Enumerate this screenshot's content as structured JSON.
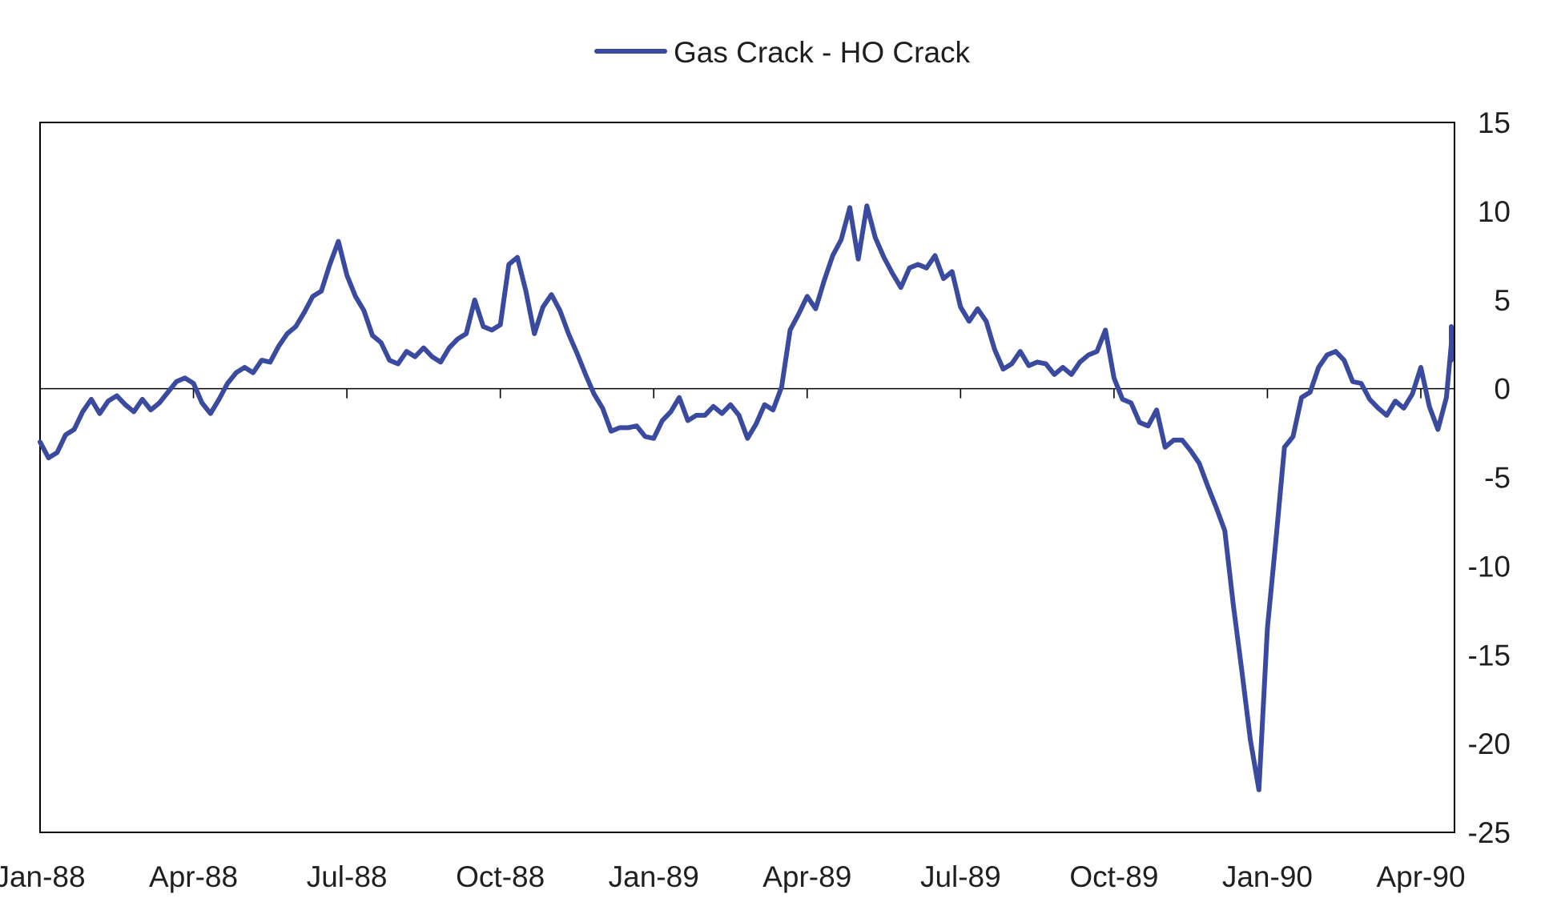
{
  "colors": {
    "series": "#3a4a9f",
    "axis": "#000000",
    "text": "#1f1f1f"
  },
  "legend": {
    "position": "top-center"
  },
  "chart_data": {
    "type": "line",
    "title": "",
    "xlabel": "",
    "ylabel": "",
    "ylim": [
      -25,
      15
    ],
    "yticks": [
      15,
      10,
      5,
      0,
      -5,
      -10,
      -15,
      -20,
      -25
    ],
    "y_axis_side": "right",
    "zero_line": true,
    "grid": false,
    "x_ticks": [
      "Jan-88",
      "Apr-88",
      "Jul-88",
      "Oct-88",
      "Jan-89",
      "Apr-89",
      "Jul-89",
      "Oct-89",
      "Jan-90",
      "Apr-90"
    ],
    "xlim": [
      "Jan-88",
      "May-90"
    ],
    "series": [
      {
        "name": "Gas Crack - HO Crack",
        "points": [
          [
            "Jan-88",
            -3.0
          ],
          [
            "Jan-88",
            -3.9
          ],
          [
            "Jan-88",
            -3.6
          ],
          [
            "Jan-88",
            -2.6
          ],
          [
            "Jan-88",
            -2.3
          ],
          [
            "Jan-88",
            -1.3
          ],
          [
            "Feb-88",
            -0.6
          ],
          [
            "Feb-88",
            -1.4
          ],
          [
            "Feb-88",
            -0.7
          ],
          [
            "Feb-88",
            -0.4
          ],
          [
            "Feb-88",
            -0.9
          ],
          [
            "Feb-88",
            -1.3
          ],
          [
            "Mar-88",
            -0.6
          ],
          [
            "Mar-88",
            -1.2
          ],
          [
            "Mar-88",
            -0.8
          ],
          [
            "Mar-88",
            -0.2
          ],
          [
            "Mar-88",
            0.4
          ],
          [
            "Mar-88",
            0.6
          ],
          [
            "Apr-88",
            0.3
          ],
          [
            "Apr-88",
            -0.8
          ],
          [
            "Apr-88",
            -1.4
          ],
          [
            "Apr-88",
            -0.6
          ],
          [
            "Apr-88",
            0.3
          ],
          [
            "Apr-88",
            0.9
          ],
          [
            "May-88",
            1.2
          ],
          [
            "May-88",
            0.9
          ],
          [
            "May-88",
            1.6
          ],
          [
            "May-88",
            1.5
          ],
          [
            "May-88",
            2.4
          ],
          [
            "May-88",
            3.1
          ],
          [
            "Jun-88",
            3.5
          ],
          [
            "Jun-88",
            4.3
          ],
          [
            "Jun-88",
            5.2
          ],
          [
            "Jun-88",
            5.5
          ],
          [
            "Jun-88",
            7.0
          ],
          [
            "Jun-88",
            8.3
          ],
          [
            "Jul-88",
            6.4
          ],
          [
            "Jul-88",
            5.2
          ],
          [
            "Jul-88",
            4.4
          ],
          [
            "Jul-88",
            3.0
          ],
          [
            "Jul-88",
            2.6
          ],
          [
            "Jul-88",
            1.6
          ],
          [
            "Aug-88",
            1.4
          ],
          [
            "Aug-88",
            2.1
          ],
          [
            "Aug-88",
            1.8
          ],
          [
            "Aug-88",
            2.3
          ],
          [
            "Aug-88",
            1.8
          ],
          [
            "Aug-88",
            1.5
          ],
          [
            "Sep-88",
            2.3
          ],
          [
            "Sep-88",
            2.8
          ],
          [
            "Sep-88",
            3.1
          ],
          [
            "Sep-88",
            5.0
          ],
          [
            "Sep-88",
            3.5
          ],
          [
            "Sep-88",
            3.3
          ],
          [
            "Oct-88",
            3.6
          ],
          [
            "Oct-88",
            7.0
          ],
          [
            "Oct-88",
            7.4
          ],
          [
            "Oct-88",
            5.5
          ],
          [
            "Oct-88",
            3.1
          ],
          [
            "Oct-88",
            4.6
          ],
          [
            "Nov-88",
            5.3
          ],
          [
            "Nov-88",
            4.4
          ],
          [
            "Nov-88",
            3.1
          ],
          [
            "Nov-88",
            2.0
          ],
          [
            "Nov-88",
            0.8
          ],
          [
            "Nov-88",
            -0.3
          ],
          [
            "Dec-88",
            -1.1
          ],
          [
            "Dec-88",
            -2.4
          ],
          [
            "Dec-88",
            -2.2
          ],
          [
            "Dec-88",
            -2.2
          ],
          [
            "Dec-88",
            -2.1
          ],
          [
            "Dec-88",
            -2.7
          ],
          [
            "Jan-89",
            -2.8
          ],
          [
            "Jan-89",
            -1.8
          ],
          [
            "Jan-89",
            -1.3
          ],
          [
            "Jan-89",
            -0.5
          ],
          [
            "Jan-89",
            -1.8
          ],
          [
            "Jan-89",
            -1.5
          ],
          [
            "Feb-89",
            -1.5
          ],
          [
            "Feb-89",
            -1.0
          ],
          [
            "Feb-89",
            -1.4
          ],
          [
            "Feb-89",
            -0.9
          ],
          [
            "Feb-89",
            -1.5
          ],
          [
            "Feb-89",
            -2.8
          ],
          [
            "Mar-89",
            -2.0
          ],
          [
            "Mar-89",
            -0.9
          ],
          [
            "Mar-89",
            -1.2
          ],
          [
            "Mar-89",
            0.1
          ],
          [
            "Mar-89",
            3.3
          ],
          [
            "Mar-89",
            4.2
          ],
          [
            "Apr-89",
            5.2
          ],
          [
            "Apr-89",
            4.5
          ],
          [
            "Apr-89",
            6.1
          ],
          [
            "Apr-89",
            7.5
          ],
          [
            "Apr-89",
            8.4
          ],
          [
            "Apr-89",
            10.2
          ],
          [
            "May-89",
            7.3
          ],
          [
            "May-89",
            10.3
          ],
          [
            "May-89",
            8.5
          ],
          [
            "May-89",
            7.4
          ],
          [
            "May-89",
            6.5
          ],
          [
            "May-89",
            5.7
          ],
          [
            "Jun-89",
            6.8
          ],
          [
            "Jun-89",
            7.0
          ],
          [
            "Jun-89",
            6.8
          ],
          [
            "Jun-89",
            7.5
          ],
          [
            "Jun-89",
            6.2
          ],
          [
            "Jun-89",
            6.6
          ],
          [
            "Jul-89",
            4.6
          ],
          [
            "Jul-89",
            3.8
          ],
          [
            "Jul-89",
            4.5
          ],
          [
            "Jul-89",
            3.8
          ],
          [
            "Jul-89",
            2.2
          ],
          [
            "Jul-89",
            1.1
          ],
          [
            "Aug-89",
            1.4
          ],
          [
            "Aug-89",
            2.1
          ],
          [
            "Aug-89",
            1.3
          ],
          [
            "Aug-89",
            1.5
          ],
          [
            "Aug-89",
            1.4
          ],
          [
            "Aug-89",
            0.8
          ],
          [
            "Sep-89",
            1.2
          ],
          [
            "Sep-89",
            0.8
          ],
          [
            "Sep-89",
            1.5
          ],
          [
            "Sep-89",
            1.9
          ],
          [
            "Sep-89",
            2.1
          ],
          [
            "Sep-89",
            3.3
          ],
          [
            "Oct-89",
            0.6
          ],
          [
            "Oct-89",
            -0.6
          ],
          [
            "Oct-89",
            -0.8
          ],
          [
            "Oct-89",
            -1.9
          ],
          [
            "Oct-89",
            -2.1
          ],
          [
            "Oct-89",
            -1.2
          ],
          [
            "Nov-89",
            -3.3
          ],
          [
            "Nov-89",
            -2.9
          ],
          [
            "Nov-89",
            -2.9
          ],
          [
            "Nov-89",
            -3.5
          ],
          [
            "Nov-89",
            -4.2
          ],
          [
            "Nov-89",
            -5.5
          ],
          [
            "Dec-89",
            -6.7
          ],
          [
            "Dec-89",
            -8.0
          ],
          [
            "Dec-89",
            -12.2
          ],
          [
            "Dec-89",
            -15.9
          ],
          [
            "Dec-89",
            -19.8
          ],
          [
            "Dec-89",
            -22.6
          ],
          [
            "Jan-90",
            -13.5
          ],
          [
            "Jan-90",
            -8.5
          ],
          [
            "Jan-90",
            -3.3
          ],
          [
            "Jan-90",
            -2.7
          ],
          [
            "Jan-90",
            -0.5
          ],
          [
            "Jan-90",
            -0.2
          ],
          [
            "Feb-90",
            1.2
          ],
          [
            "Feb-90",
            1.9
          ],
          [
            "Feb-90",
            2.1
          ],
          [
            "Feb-90",
            1.6
          ],
          [
            "Feb-90",
            0.4
          ],
          [
            "Feb-90",
            0.3
          ],
          [
            "Mar-90",
            -0.6
          ],
          [
            "Mar-90",
            -1.1
          ],
          [
            "Mar-90",
            -1.5
          ],
          [
            "Mar-90",
            -0.7
          ],
          [
            "Mar-90",
            -1.1
          ],
          [
            "Mar-90",
            -0.3
          ],
          [
            "Apr-90",
            1.2
          ],
          [
            "Apr-90",
            -1.0
          ],
          [
            "Apr-90",
            -2.3
          ],
          [
            "Apr-90",
            -0.5
          ],
          [
            "Apr-90",
            2.5
          ],
          [
            "Apr-90",
            3.5
          ],
          [
            "May-90",
            1.6
          ]
        ]
      }
    ]
  }
}
